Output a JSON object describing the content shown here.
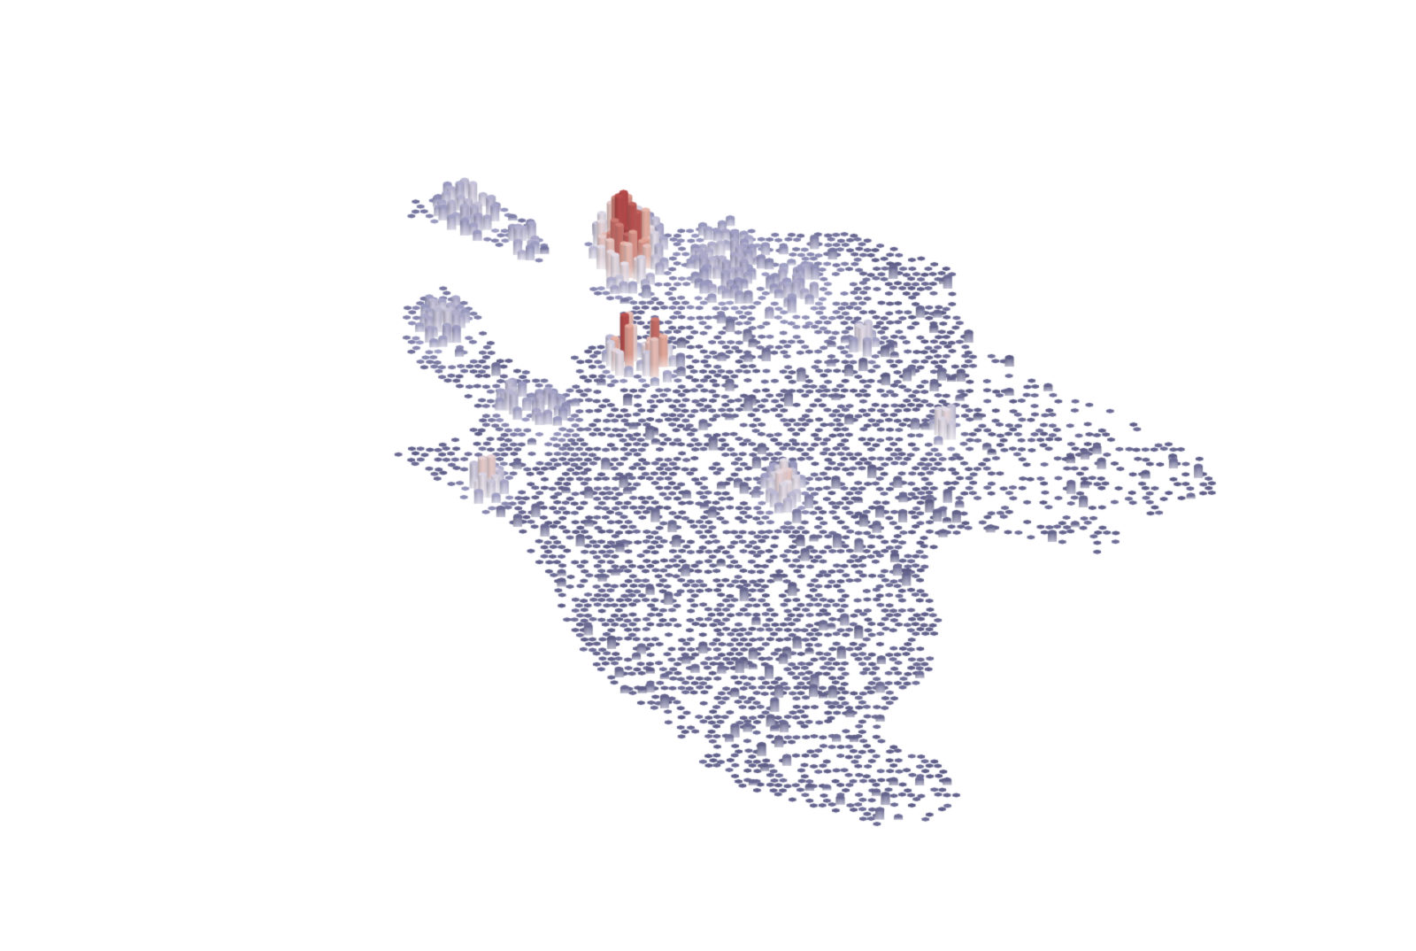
{
  "map": {
    "type": "3d-hexagon-density",
    "basemap": "none",
    "background_color": "#ffffff",
    "color_range": {
      "low": "#5b5b86",
      "mid_low": "#9a9ac2",
      "mid": "#e6e0ea",
      "mid_high": "#e8b0a2",
      "high": "#b54a4a"
    },
    "elevation": "extruded-by-count",
    "pitch": "tilted"
  }
}
